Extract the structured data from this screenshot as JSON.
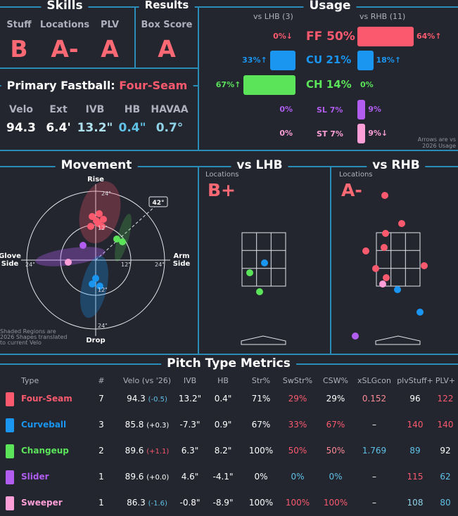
{
  "skills": {
    "title": "Skills",
    "items": [
      {
        "label": "Stuff",
        "grade": "B"
      },
      {
        "label": "Locations",
        "grade": "A-"
      },
      {
        "label": "PLV",
        "grade": "A"
      }
    ]
  },
  "results": {
    "title": "Results",
    "label": "Box Score",
    "grade": "A"
  },
  "primary_fastball": {
    "prefix": "Primary Fastball:",
    "name": "Four-Seam",
    "stats": [
      {
        "label": "Velo",
        "value": "94.3",
        "color": "#ffffff"
      },
      {
        "label": "Ext",
        "value": "6.4'",
        "color": "#ffffff"
      },
      {
        "label": "IVB",
        "value": "13.2\"",
        "color": "#aee0ee"
      },
      {
        "label": "HB",
        "value": "0.4\"",
        "color": "#5fc2e6"
      },
      {
        "label": "HAVAA",
        "value": "0.7°",
        "color": "#8fd3e8"
      }
    ]
  },
  "usage": {
    "title": "Usage",
    "vs_lhb_header": "vs LHB (3)",
    "vs_rhb_header": "vs RHB (11)",
    "note_line1": "Arrows are vs",
    "note_line2": "2026 Usage",
    "rows": [
      {
        "label": "FF 50%",
        "color": "#fb5a6e",
        "lhb_text": "0%↓",
        "lhb_color": "#fb5a6e",
        "lhb": 0,
        "rhb_text": "64%↑",
        "rhb_color": "#fb5a6e",
        "rhb": 64
      },
      {
        "label": "CU 21%",
        "color": "#1a96f0",
        "lhb_text": "33%↑",
        "lhb_color": "#1a96f0",
        "lhb": 33,
        "rhb_text": "18%↑",
        "rhb_color": "#1a96f0",
        "rhb": 18
      },
      {
        "label": "CH 14%",
        "color": "#5be35a",
        "lhb_text": "67%↑",
        "lhb_color": "#5be35a",
        "lhb": 67,
        "rhb_text": "0%",
        "rhb_color": "#5be35a",
        "rhb": 0
      },
      {
        "label": "SL 7%",
        "color": "#b15ef0",
        "lhb_text": "0%",
        "lhb_color": "#b15ef0",
        "lhb": 0,
        "rhb_text": "9%",
        "rhb_color": "#b15ef0",
        "rhb": 9
      },
      {
        "label": "ST 7%",
        "color": "#ff9fd7",
        "lhb_text": "0%",
        "lhb_color": "#ff9fd7",
        "lhb": 0,
        "rhb_text": "9%↓",
        "rhb_color": "#ff9fd7",
        "rhb": 9
      }
    ]
  },
  "movement": {
    "title": "Movement",
    "rise": "Rise",
    "drop": "Drop",
    "glove_side": "Glove\nSide",
    "arm_side": "Arm\nSide",
    "arm_angle": "42°",
    "ring_inner": "12\"",
    "ring_outer": "24\"",
    "note": "Shaded Regions are\n2026 Shapes translated\nto current Velo"
  },
  "vs_lhb": {
    "title": "vs LHB",
    "loc_label": "Locations",
    "grade": "B+"
  },
  "vs_rhb": {
    "title": "vs RHB",
    "loc_label": "Locations",
    "grade": "A-"
  },
  "metrics": {
    "title": "Pitch Type Metrics",
    "headers": [
      "Type",
      "#",
      "Velo (vs '26)",
      "IVB",
      "HB",
      "Str%",
      "SwStr%",
      "CSW%",
      "xSLGcon",
      "plvStuff+",
      "PLV+"
    ],
    "rows": [
      {
        "type": "Four-Seam",
        "color": "#fb5a6e",
        "n": "7",
        "velo": "94.3",
        "velo_diff": "(-0.5)",
        "velo_diff_color": "#5fc2e6",
        "ivb": "13.2\"",
        "hb": "0.4\"",
        "str": "71%",
        "str_color": "#ffffff",
        "swstr": "29%",
        "swstr_color": "#fb5a6e",
        "csw": "29%",
        "csw_color": "#ffffff",
        "xslg": "0.152",
        "xslg_color": "#fb8a94",
        "stuff": "96",
        "stuff_color": "#ffffff",
        "plv": "122",
        "plv_color": "#fb5a6e"
      },
      {
        "type": "Curveball",
        "color": "#1a96f0",
        "n": "3",
        "velo": "85.8",
        "velo_diff": "(+0.3)",
        "velo_diff_color": "#ffffff",
        "ivb": "-7.3\"",
        "hb": "0.9\"",
        "str": "67%",
        "str_color": "#ffffff",
        "swstr": "33%",
        "swstr_color": "#fb5a6e",
        "csw": "67%",
        "csw_color": "#fb5a6e",
        "xslg": "–",
        "xslg_color": "#ffffff",
        "stuff": "140",
        "stuff_color": "#fb5a6e",
        "plv": "140",
        "plv_color": "#fb5a6e"
      },
      {
        "type": "Changeup",
        "color": "#5be35a",
        "n": "2",
        "velo": "89.6",
        "velo_diff": "(+1.1)",
        "velo_diff_color": "#fb5a6e",
        "ivb": "6.3\"",
        "hb": "8.2\"",
        "str": "100%",
        "str_color": "#ffffff",
        "swstr": "50%",
        "swstr_color": "#fb5a6e",
        "csw": "50%",
        "csw_color": "#fb8a94",
        "xslg": "1.769",
        "xslg_color": "#5fc2e6",
        "stuff": "89",
        "stuff_color": "#5fc2e6",
        "plv": "92",
        "plv_color": "#ffffff"
      },
      {
        "type": "Slider",
        "color": "#b15ef0",
        "n": "1",
        "velo": "89.6",
        "velo_diff": "(+0.0)",
        "velo_diff_color": "#ffffff",
        "ivb": "4.6\"",
        "hb": "-4.1\"",
        "str": "0%",
        "str_color": "#ffffff",
        "swstr": "0%",
        "swstr_color": "#5fc2e6",
        "csw": "0%",
        "csw_color": "#5fc2e6",
        "xslg": "–",
        "xslg_color": "#ffffff",
        "stuff": "115",
        "stuff_color": "#fb5a6e",
        "plv": "62",
        "plv_color": "#5fc2e6"
      },
      {
        "type": "Sweeper",
        "color": "#ff9fd7",
        "n": "1",
        "velo": "86.3",
        "velo_diff": "(-1.6)",
        "velo_diff_color": "#5fc2e6",
        "ivb": "-0.8\"",
        "hb": "-8.9\"",
        "str": "100%",
        "str_color": "#ffffff",
        "swstr": "100%",
        "swstr_color": "#fb5a6e",
        "csw": "100%",
        "csw_color": "#fb5a6e",
        "xslg": "–",
        "xslg_color": "#ffffff",
        "stuff": "108",
        "stuff_color": "#8fd3e8",
        "plv": "80",
        "plv_color": "#5fc2e6"
      }
    ]
  }
}
